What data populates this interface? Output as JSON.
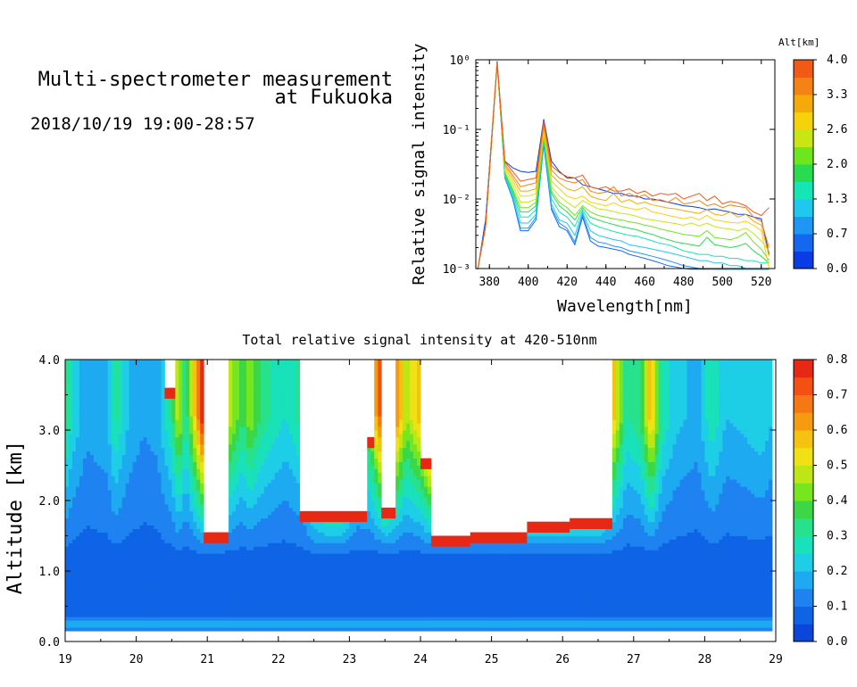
{
  "header": {
    "title_line1": "Multi-spectrometer measurement",
    "title_line2": "at Fukuoka",
    "date_range": "2018/10/19 19:00-28:57"
  },
  "chart_data": [
    {
      "type": "line",
      "xlabel": "Wavelength[nm]",
      "ylabel": "Relative signal intensity",
      "yscale": "log",
      "xlim": [
        373,
        527
      ],
      "ylim": [
        0.001,
        1
      ],
      "xticks": [
        "380",
        "400",
        "420",
        "440",
        "460",
        "480",
        "500",
        "520"
      ],
      "yticks": [
        "10⁰",
        "10⁻¹",
        "10⁻²",
        "10⁻³"
      ],
      "colorbar": {
        "label": "Alt[km]",
        "ticks": [
          "4.0",
          "3.3",
          "2.6",
          "2.0",
          "1.3",
          "0.7",
          "0.0"
        ],
        "colors": [
          "#0a3ce6",
          "#1468f0",
          "#1e96f5",
          "#1ec8ef",
          "#14e6b4",
          "#28dc50",
          "#6ee61e",
          "#c8e614",
          "#f5d20a",
          "#f5aa0a",
          "#f58214",
          "#f05a14"
        ]
      },
      "x": [
        374,
        378,
        384,
        388,
        392,
        396,
        400,
        404,
        408,
        412,
        416,
        420,
        424,
        428,
        432,
        436,
        440,
        444,
        448,
        452,
        456,
        460,
        464,
        468,
        472,
        476,
        480,
        484,
        488,
        492,
        496,
        500,
        504,
        508,
        512,
        516,
        520,
        524
      ],
      "series": [
        {
          "color": "#0a3ce6",
          "values": [
            0.0008,
            0.005,
            0.95,
            0.035,
            0.028,
            0.025,
            0.024,
            0.025,
            0.14,
            0.035,
            0.025,
            0.02,
            0.02,
            0.016,
            0.015,
            0.014,
            0.013,
            0.012,
            0.012,
            0.011,
            0.011,
            0.01,
            0.01,
            0.0095,
            0.009,
            0.0085,
            0.008,
            0.0078,
            0.0075,
            0.007,
            0.0072,
            0.0068,
            0.0065,
            0.006,
            0.006,
            0.0055,
            0.0052,
            0.0016
          ]
        },
        {
          "color": "#1468f0",
          "values": [
            0.0008,
            0.004,
            0.9,
            0.02,
            0.01,
            0.0035,
            0.0035,
            0.005,
            0.06,
            0.007,
            0.004,
            0.0035,
            0.0022,
            0.0055,
            0.0025,
            0.0021,
            0.002,
            0.0019,
            0.0018,
            0.0016,
            0.0015,
            0.0014,
            0.0013,
            0.0012,
            0.0011,
            0.00105,
            0.001,
            0.00095,
            0.0009,
            0.0009,
            0.00085,
            0.0008,
            0.0008,
            0.0008,
            0.0008,
            0.0008,
            0.0008,
            0.0008
          ]
        },
        {
          "color": "#1e96f5",
          "values": [
            0.0008,
            0.004,
            0.9,
            0.02,
            0.01,
            0.0038,
            0.0038,
            0.0055,
            0.065,
            0.0075,
            0.0045,
            0.0038,
            0.0024,
            0.006,
            0.0028,
            0.0024,
            0.0023,
            0.0021,
            0.002,
            0.0018,
            0.0017,
            0.0016,
            0.0015,
            0.0014,
            0.0013,
            0.0012,
            0.0011,
            0.00105,
            0.001,
            0.001,
            0.00095,
            0.0009,
            0.0009,
            0.0009,
            0.0009,
            0.0009,
            0.0009,
            0.0009
          ]
        },
        {
          "color": "#1ec8ef",
          "values": [
            0.0008,
            0.004,
            0.9,
            0.021,
            0.011,
            0.0045,
            0.0045,
            0.006,
            0.07,
            0.0085,
            0.005,
            0.0045,
            0.003,
            0.0065,
            0.0035,
            0.003,
            0.0028,
            0.0026,
            0.0025,
            0.0022,
            0.0021,
            0.002,
            0.0019,
            0.0018,
            0.0017,
            0.0016,
            0.0015,
            0.0014,
            0.0013,
            0.0013,
            0.0012,
            0.0012,
            0.0011,
            0.0011,
            0.001,
            0.001,
            0.001,
            0.001
          ]
        },
        {
          "color": "#14e6b4",
          "values": [
            0.0008,
            0.004,
            0.9,
            0.022,
            0.012,
            0.0055,
            0.0055,
            0.007,
            0.075,
            0.01,
            0.0065,
            0.0055,
            0.004,
            0.007,
            0.0045,
            0.004,
            0.0037,
            0.0034,
            0.0032,
            0.003,
            0.0029,
            0.0027,
            0.0025,
            0.0023,
            0.0022,
            0.002,
            0.0018,
            0.0017,
            0.0016,
            0.0016,
            0.0015,
            0.0015,
            0.0014,
            0.0014,
            0.0013,
            0.0013,
            0.0012,
            0.0012
          ]
        },
        {
          "color": "#28dc50",
          "values": [
            0.0008,
            0.004,
            0.9,
            0.023,
            0.013,
            0.0065,
            0.0065,
            0.008,
            0.08,
            0.012,
            0.008,
            0.0065,
            0.005,
            0.0075,
            0.0055,
            0.005,
            0.0046,
            0.0043,
            0.004,
            0.0038,
            0.0036,
            0.0033,
            0.0031,
            0.0028,
            0.0026,
            0.0024,
            0.0023,
            0.0022,
            0.0021,
            0.0028,
            0.0022,
            0.0021,
            0.002,
            0.0021,
            0.0023,
            0.0018,
            0.0015,
            0.0012
          ]
        },
        {
          "color": "#6ee61e",
          "values": [
            0.0008,
            0.004,
            0.9,
            0.024,
            0.014,
            0.0075,
            0.0075,
            0.009,
            0.085,
            0.013,
            0.009,
            0.0075,
            0.0058,
            0.008,
            0.0065,
            0.0058,
            0.0055,
            0.0052,
            0.005,
            0.0047,
            0.0045,
            0.0042,
            0.004,
            0.0037,
            0.0035,
            0.0033,
            0.0031,
            0.003,
            0.0029,
            0.0035,
            0.0028,
            0.0027,
            0.0026,
            0.0028,
            0.0033,
            0.0024,
            0.0019,
            0.0013
          ]
        },
        {
          "color": "#c8e614",
          "values": [
            0.0008,
            0.004,
            0.9,
            0.026,
            0.016,
            0.009,
            0.009,
            0.01,
            0.09,
            0.015,
            0.011,
            0.009,
            0.0075,
            0.0095,
            0.0082,
            0.0072,
            0.007,
            0.0066,
            0.0062,
            0.006,
            0.0056,
            0.0052,
            0.005,
            0.0048,
            0.0046,
            0.0044,
            0.0042,
            0.0045,
            0.0041,
            0.0045,
            0.004,
            0.0038,
            0.0037,
            0.0035,
            0.0038,
            0.0032,
            0.0025,
            0.0018
          ]
        },
        {
          "color": "#f5d20a",
          "values": [
            0.0008,
            0.004,
            0.9,
            0.028,
            0.018,
            0.011,
            0.011,
            0.012,
            0.1,
            0.018,
            0.014,
            0.011,
            0.01,
            0.011,
            0.009,
            0.0085,
            0.008,
            0.0088,
            0.0078,
            0.0074,
            0.007,
            0.0075,
            0.0065,
            0.0062,
            0.0058,
            0.0055,
            0.0052,
            0.0055,
            0.005,
            0.0058,
            0.005,
            0.0048,
            0.0046,
            0.0045,
            0.0048,
            0.0042,
            0.0035,
            0.001
          ]
        },
        {
          "color": "#f5aa0a",
          "values": [
            0.0008,
            0.004,
            0.9,
            0.03,
            0.02,
            0.013,
            0.013,
            0.014,
            0.11,
            0.022,
            0.017,
            0.014,
            0.013,
            0.015,
            0.011,
            0.01,
            0.0095,
            0.012,
            0.009,
            0.0098,
            0.0085,
            0.009,
            0.0082,
            0.0078,
            0.0074,
            0.0072,
            0.0068,
            0.0065,
            0.0062,
            0.007,
            0.006,
            0.0058,
            0.0065,
            0.0055,
            0.006,
            0.0048,
            0.0042,
            0.0015
          ]
        },
        {
          "color": "#f58214",
          "values": [
            0.0008,
            0.004,
            0.9,
            0.032,
            0.022,
            0.015,
            0.016,
            0.017,
            0.12,
            0.026,
            0.02,
            0.018,
            0.017,
            0.019,
            0.013,
            0.012,
            0.0125,
            0.015,
            0.011,
            0.012,
            0.0105,
            0.0115,
            0.0095,
            0.0098,
            0.009,
            0.0105,
            0.0085,
            0.0088,
            0.0095,
            0.008,
            0.0085,
            0.0075,
            0.0082,
            0.0078,
            0.0075,
            0.0055,
            0.0048,
            0.002
          ]
        },
        {
          "color": "#f05a14",
          "values": [
            0.0008,
            0.004,
            0.9,
            0.034,
            0.025,
            0.018,
            0.019,
            0.02,
            0.13,
            0.03,
            0.024,
            0.021,
            0.02,
            0.022,
            0.015,
            0.014,
            0.015,
            0.013,
            0.013,
            0.014,
            0.012,
            0.013,
            0.011,
            0.012,
            0.0115,
            0.012,
            0.01,
            0.011,
            0.012,
            0.0095,
            0.011,
            0.0085,
            0.0092,
            0.0088,
            0.008,
            0.0065,
            0.0058,
            0.0075
          ]
        }
      ]
    },
    {
      "type": "heatmap",
      "title": "Total relative signal intensity at 420-510nm",
      "ylabel": "Altitude [km]",
      "xlim": [
        19,
        29
      ],
      "ylim": [
        0,
        4
      ],
      "xticks": [
        "19",
        "20",
        "21",
        "22",
        "23",
        "24",
        "25",
        "26",
        "27",
        "28",
        "29"
      ],
      "yticks": [
        "0.0",
        "1.0",
        "2.0",
        "3.0",
        "4.0"
      ],
      "data_x_range": [
        19,
        28.95
      ],
      "data_y_range": [
        0.15,
        4.0
      ],
      "colorbar": {
        "ticks": [
          "0.0",
          "0.1",
          "0.2",
          "0.3",
          "0.4",
          "0.5",
          "0.6",
          "0.7",
          "0.8"
        ],
        "range": [
          0,
          0.8
        ],
        "colors": [
          "#0a46dc",
          "#0f64e6",
          "#1e82f0",
          "#1eaaf0",
          "#1ecde6",
          "#19e1b9",
          "#28e18c",
          "#3cd746",
          "#78e61e",
          "#bee614",
          "#f0e114",
          "#f5c30f",
          "#f59b0f",
          "#f57814",
          "#f55014",
          "#e62814"
        ]
      },
      "background_level": 0.08,
      "columns": [
        {
          "t": 19.0,
          "top": 0.35
        },
        {
          "t": 19.1,
          "top": 0.25
        },
        {
          "t": 19.3,
          "top": 0.17
        },
        {
          "t": 19.6,
          "top": 0.2
        },
        {
          "t": 19.7,
          "top": 0.32
        },
        {
          "t": 19.9,
          "top": 0.2
        },
        {
          "t": 20.1,
          "top": 0.16
        },
        {
          "t": 20.3,
          "top": 0.18
        },
        {
          "t": 20.5,
          "top": 0.32
        },
        {
          "t": 20.6,
          "top": 0.5
        },
        {
          "t": 20.7,
          "top": 0.3
        },
        {
          "t": 20.85,
          "top": 0.6
        },
        {
          "t": 20.95,
          "top": 0.85
        },
        {
          "t": 21.1,
          "top": 0.85
        },
        {
          "t": 21.2,
          "top": 0.85
        },
        {
          "t": 21.3,
          "top": 0.5
        },
        {
          "t": 21.5,
          "top": 0.35
        },
        {
          "t": 21.6,
          "top": 0.45
        },
        {
          "t": 21.75,
          "top": 0.35
        },
        {
          "t": 21.9,
          "top": 0.3
        },
        {
          "t": 22.1,
          "top": 0.25
        },
        {
          "t": 22.25,
          "top": 0.3
        },
        {
          "t": 22.35,
          "top": 0.35
        },
        {
          "t": 22.5,
          "top": 0.7
        },
        {
          "t": 22.7,
          "top": 0.85
        },
        {
          "t": 22.9,
          "top": 0.85
        },
        {
          "t": 23.1,
          "top": 0.4
        },
        {
          "t": 23.3,
          "top": 0.45
        },
        {
          "t": 23.5,
          "top": 0.85
        },
        {
          "t": 23.6,
          "top": 0.75
        },
        {
          "t": 23.8,
          "top": 0.45
        },
        {
          "t": 24.0,
          "top": 0.6
        },
        {
          "t": 24.15,
          "top": 0.85
        },
        {
          "t": 24.3,
          "top": 0.85
        },
        {
          "t": 24.6,
          "top": 0.85
        },
        {
          "t": 25.0,
          "top": 0.85
        },
        {
          "t": 25.4,
          "top": 0.85
        },
        {
          "t": 25.8,
          "top": 0.85
        },
        {
          "t": 26.2,
          "top": 0.85
        },
        {
          "t": 26.5,
          "top": 0.85
        },
        {
          "t": 26.7,
          "top": 0.6
        },
        {
          "t": 26.9,
          "top": 0.3
        },
        {
          "t": 27.1,
          "top": 0.35
        },
        {
          "t": 27.25,
          "top": 0.6
        },
        {
          "t": 27.4,
          "top": 0.3
        },
        {
          "t": 27.6,
          "top": 0.22
        },
        {
          "t": 27.9,
          "top": 0.18
        },
        {
          "t": 28.1,
          "top": 0.3
        },
        {
          "t": 28.3,
          "top": 0.2
        },
        {
          "t": 28.55,
          "top": 0.22
        },
        {
          "t": 28.8,
          "top": 0.25
        },
        {
          "t": 28.95,
          "top": 0.2
        }
      ],
      "saturated_regions": [
        {
          "t0": 20.95,
          "t1": 21.3,
          "bottom": 1.55
        },
        {
          "t0": 20.4,
          "t1": 20.55,
          "bottom": 3.6
        },
        {
          "t0": 22.3,
          "t1": 23.25,
          "bottom": 1.85
        },
        {
          "t0": 23.45,
          "t1": 23.65,
          "bottom": 1.9
        },
        {
          "t0": 23.05,
          "t1": 23.35,
          "bottom": 2.9
        },
        {
          "t0": 24.0,
          "t1": 24.35,
          "bottom": 2.6
        },
        {
          "t0": 24.15,
          "t1": 24.7,
          "bottom": 1.5
        },
        {
          "t0": 24.7,
          "t1": 25.5,
          "bottom": 1.55
        },
        {
          "t0": 25.5,
          "t1": 26.1,
          "bottom": 1.7
        },
        {
          "t0": 26.1,
          "t1": 26.7,
          "bottom": 1.75
        }
      ]
    }
  ]
}
